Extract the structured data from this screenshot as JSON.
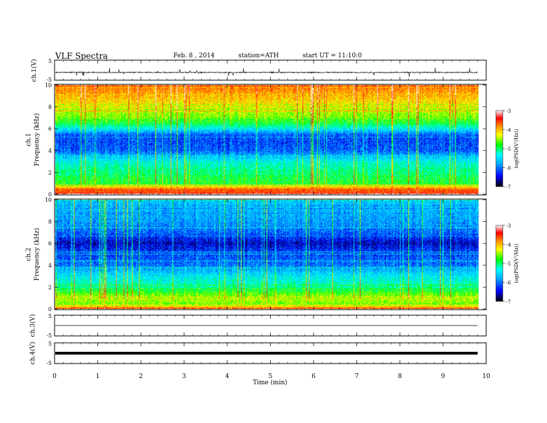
{
  "header": {
    "title": "VLF Spectra",
    "date": "Feb. 8 , 2014",
    "station": "station=ATH",
    "start": "start UT = 11:10:0"
  },
  "chart_data": [
    {
      "type": "line",
      "panel": "ch1-waveform",
      "ylabel": "ch.1(V)",
      "yticks": [
        "5",
        "-5"
      ],
      "ylim": [
        -5,
        5
      ],
      "xlim": [
        0,
        10
      ],
      "description_values": {
        "baseline": -1.2,
        "noise_amplitude": 0.6,
        "spike_amplitude": 2.5,
        "data_end_min": 9.8
      }
    },
    {
      "type": "heatmap",
      "panel": "ch1-spectrogram",
      "ylabel": "ch.1\nFrequency (kHz)",
      "ylabel_lines": [
        "ch.1",
        "Frequency (kHz)"
      ],
      "yticks": [
        "0",
        "2",
        "4",
        "6",
        "8",
        "10"
      ],
      "ylim": [
        0,
        10
      ],
      "xlim": [
        0,
        10
      ],
      "data_end_min": 9.8,
      "colorbar": {
        "label": "log(PSD(V²/Hz))",
        "ticks": [
          "-3",
          "-4",
          "-5",
          "-6",
          "-7"
        ],
        "range": [
          -7,
          -3
        ]
      },
      "profile_khz": [
        0,
        0.5,
        1,
        2,
        3,
        4,
        5,
        5.5,
        6,
        6.5,
        7,
        8,
        9,
        10
      ],
      "profile_log_psd": [
        -3.6,
        -3.9,
        -5.0,
        -5.2,
        -5.5,
        -6.2,
        -6.3,
        -6.2,
        -5.6,
        -5.1,
        -4.8,
        -4.5,
        -4.2,
        -3.9
      ]
    },
    {
      "type": "heatmap",
      "panel": "ch2-spectrogram",
      "ylabel_lines": [
        "ch.2",
        "Frequency (kHz)"
      ],
      "yticks": [
        "0",
        "2",
        "4",
        "6",
        "8",
        "10"
      ],
      "ylim": [
        0,
        10
      ],
      "xlim": [
        0,
        10
      ],
      "data_end_min": 9.8,
      "colorbar": {
        "label": "log(PSD(V²/Hz))",
        "ticks": [
          "-3",
          "-4",
          "-5",
          "-6",
          "-7"
        ],
        "range": [
          -7,
          -3
        ]
      },
      "profile_khz": [
        0,
        0.5,
        1,
        1.5,
        2,
        3,
        4,
        5,
        5.5,
        6,
        7,
        8,
        9,
        10
      ],
      "profile_log_psd": [
        -3.8,
        -4.8,
        -4.6,
        -4.9,
        -5.3,
        -5.6,
        -6.1,
        -6.3,
        -6.4,
        -6.6,
        -6.2,
        -6.0,
        -5.9,
        -5.8
      ]
    },
    {
      "type": "line",
      "panel": "ch3-waveform",
      "ylabel": "ch.3(V)",
      "yticks": [
        "5",
        "-5"
      ],
      "ylim": [
        -5,
        5
      ],
      "xlim": [
        0,
        10
      ],
      "description_values": {
        "baseline": 0.0,
        "data_end_min": 9.8
      }
    },
    {
      "type": "line",
      "panel": "ch4-waveform",
      "ylabel": "ch.4(V)",
      "yticks": [
        "5",
        "-5"
      ],
      "ylim": [
        -5,
        5
      ],
      "xlim": [
        0,
        10
      ],
      "description_values": {
        "baseline": 0.0,
        "data_end_min": 9.8
      }
    }
  ],
  "xaxis": {
    "label": "Time (min)",
    "ticks": [
      "0",
      "1",
      "2",
      "3",
      "4",
      "5",
      "6",
      "7",
      "8",
      "9",
      "10"
    ],
    "range": [
      0,
      10
    ]
  },
  "colors": {
    "trace": "#000000",
    "colormap": [
      "#000000",
      "#0000ff",
      "#00aaff",
      "#00ffff",
      "#00ff00",
      "#ffff00",
      "#ff8800",
      "#ff0000",
      "#ffffff"
    ]
  }
}
